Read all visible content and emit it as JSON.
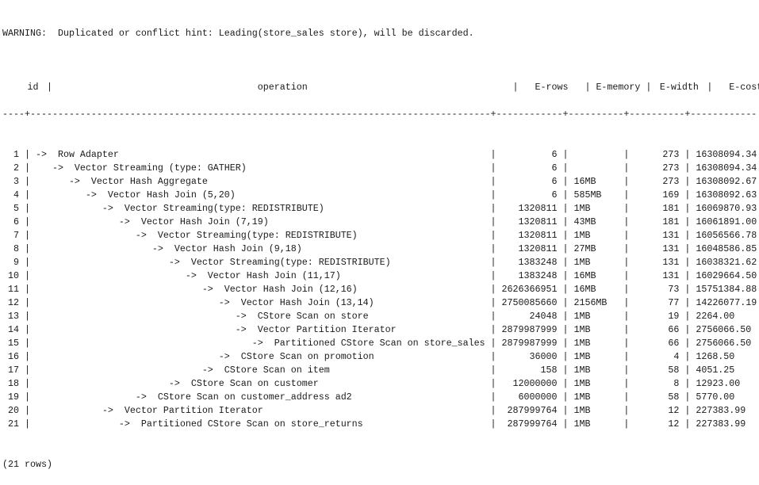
{
  "warning": "WARNING:  Duplicated or conflict hint: Leading(store_sales store), will be discarded.",
  "headers": {
    "id": "id",
    "operation": "operation",
    "e_rows": "E-rows",
    "e_memory": "E-memory",
    "e_width": "E-width",
    "e_costs": "E-costs"
  },
  "rows": [
    {
      "id": "1",
      "operation": "->  Row Adapter",
      "e_rows": "6",
      "e_memory": "",
      "e_width": "273",
      "e_costs": "16308094.34"
    },
    {
      "id": "2",
      "operation": "   ->  Vector Streaming (type: GATHER)",
      "e_rows": "6",
      "e_memory": "",
      "e_width": "273",
      "e_costs": "16308094.34"
    },
    {
      "id": "3",
      "operation": "      ->  Vector Hash Aggregate",
      "e_rows": "6",
      "e_memory": "16MB",
      "e_width": "273",
      "e_costs": "16308092.67"
    },
    {
      "id": "4",
      "operation": "         ->  Vector Hash Join (5,20)",
      "e_rows": "6",
      "e_memory": "585MB",
      "e_width": "169",
      "e_costs": "16308092.63"
    },
    {
      "id": "5",
      "operation": "            ->  Vector Streaming(type: REDISTRIBUTE)",
      "e_rows": "1320811",
      "e_memory": "1MB",
      "e_width": "181",
      "e_costs": "16069870.93"
    },
    {
      "id": "6",
      "operation": "               ->  Vector Hash Join (7,19)",
      "e_rows": "1320811",
      "e_memory": "43MB",
      "e_width": "181",
      "e_costs": "16061891.00"
    },
    {
      "id": "7",
      "operation": "                  ->  Vector Streaming(type: REDISTRIBUTE)",
      "e_rows": "1320811",
      "e_memory": "1MB",
      "e_width": "131",
      "e_costs": "16056566.78"
    },
    {
      "id": "8",
      "operation": "                     ->  Vector Hash Join (9,18)",
      "e_rows": "1320811",
      "e_memory": "27MB",
      "e_width": "131",
      "e_costs": "16048586.85"
    },
    {
      "id": "9",
      "operation": "                        ->  Vector Streaming(type: REDISTRIBUTE)",
      "e_rows": "1383248",
      "e_memory": "1MB",
      "e_width": "131",
      "e_costs": "16038321.62"
    },
    {
      "id": "10",
      "operation": "                           ->  Vector Hash Join (11,17)",
      "e_rows": "1383248",
      "e_memory": "16MB",
      "e_width": "131",
      "e_costs": "16029664.50"
    },
    {
      "id": "11",
      "operation": "                              ->  Vector Hash Join (12,16)",
      "e_rows": "2626366951",
      "e_memory": "16MB",
      "e_width": "73",
      "e_costs": "15751384.88"
    },
    {
      "id": "12",
      "operation": "                                 ->  Vector Hash Join (13,14)",
      "e_rows": "2750085660",
      "e_memory": "2156MB",
      "e_width": "77",
      "e_costs": "14226077.19"
    },
    {
      "id": "13",
      "operation": "                                    ->  CStore Scan on store",
      "e_rows": "24048",
      "e_memory": "1MB",
      "e_width": "19",
      "e_costs": "2264.00"
    },
    {
      "id": "14",
      "operation": "                                    ->  Vector Partition Iterator",
      "e_rows": "2879987999",
      "e_memory": "1MB",
      "e_width": "66",
      "e_costs": "2756066.50"
    },
    {
      "id": "15",
      "operation": "                                       ->  Partitioned CStore Scan on store_sales",
      "e_rows": "2879987999",
      "e_memory": "1MB",
      "e_width": "66",
      "e_costs": "2756066.50"
    },
    {
      "id": "16",
      "operation": "                                 ->  CStore Scan on promotion",
      "e_rows": "36000",
      "e_memory": "1MB",
      "e_width": "4",
      "e_costs": "1268.50"
    },
    {
      "id": "17",
      "operation": "                              ->  CStore Scan on item",
      "e_rows": "158",
      "e_memory": "1MB",
      "e_width": "58",
      "e_costs": "4051.25"
    },
    {
      "id": "18",
      "operation": "                        ->  CStore Scan on customer",
      "e_rows": "12000000",
      "e_memory": "1MB",
      "e_width": "8",
      "e_costs": "12923.00"
    },
    {
      "id": "19",
      "operation": "                  ->  CStore Scan on customer_address ad2",
      "e_rows": "6000000",
      "e_memory": "1MB",
      "e_width": "58",
      "e_costs": "5770.00"
    },
    {
      "id": "20",
      "operation": "            ->  Vector Partition Iterator",
      "e_rows": "287999764",
      "e_memory": "1MB",
      "e_width": "12",
      "e_costs": "227383.99"
    },
    {
      "id": "21",
      "operation": "               ->  Partitioned CStore Scan on store_returns",
      "e_rows": "287999764",
      "e_memory": "1MB",
      "e_width": "12",
      "e_costs": "227383.99"
    }
  ],
  "footer": "(21 rows)"
}
